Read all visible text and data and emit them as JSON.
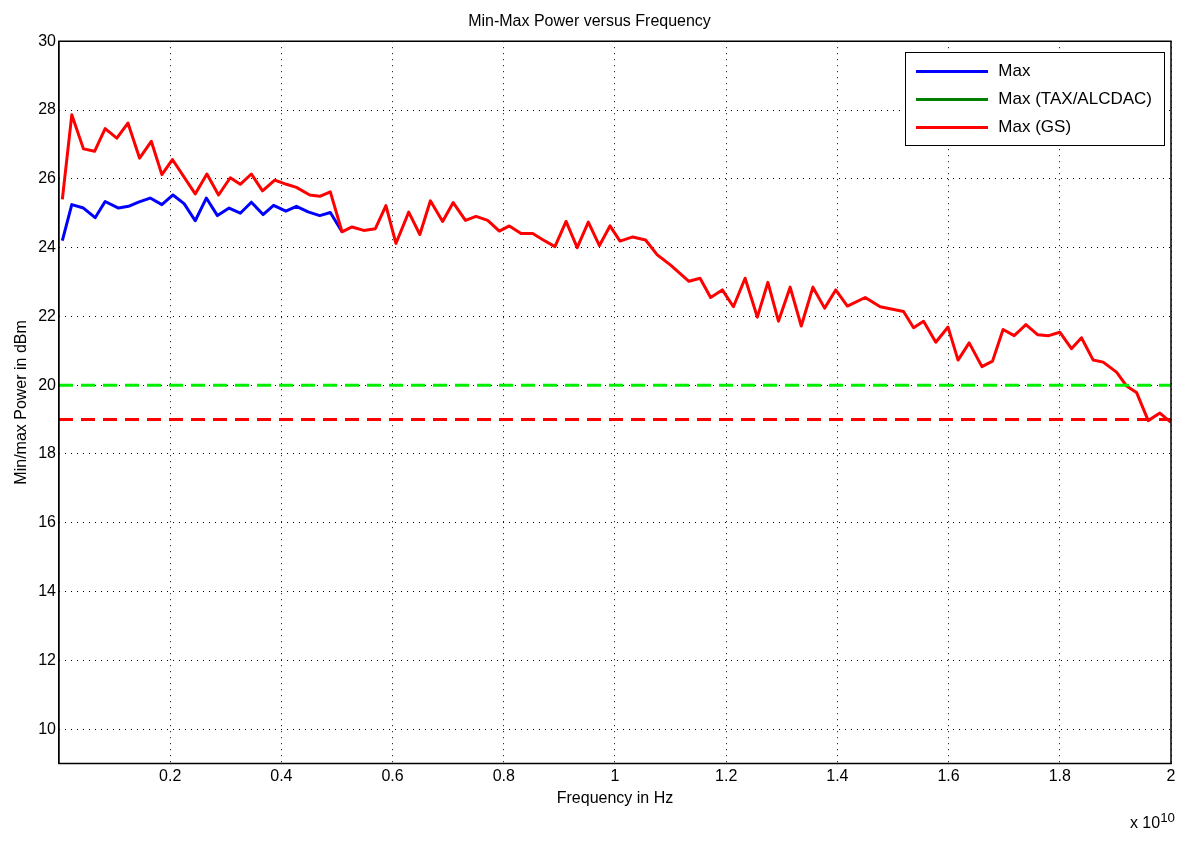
{
  "chart_data": {
    "type": "line",
    "title": "Min-Max Power versus Frequency",
    "xlabel": "Frequency in Hz",
    "ylabel": "Min/max Power in dBm",
    "annotations": [
      "x 10$^{10}$"
    ],
    "xlim": [
      0,
      2
    ],
    "xticks": [
      0.2,
      0.4,
      0.6,
      0.8,
      1,
      1.2,
      1.4,
      1.6,
      1.8,
      2
    ],
    "ylim": [
      9,
      30
    ],
    "yticks": [
      10,
      12,
      14,
      16,
      18,
      20,
      22,
      24,
      26,
      28,
      30
    ],
    "grid": true,
    "legend": "top right",
    "line_style": "solid",
    "ref_lines": [
      {
        "axis": "y",
        "value": 20,
        "color": "#00ee00",
        "line_style": "dashed"
      },
      {
        "axis": "y",
        "value": 19,
        "color": "#ff0000",
        "line_style": "dashed"
      }
    ],
    "series": [
      {
        "name": "Max",
        "color": "#0000ff",
        "x": [
          0.006,
          0.023,
          0.044,
          0.065,
          0.083,
          0.107,
          0.125,
          0.143,
          0.164,
          0.185,
          0.205,
          0.225,
          0.245,
          0.265,
          0.285,
          0.306,
          0.326,
          0.346,
          0.367,
          0.386,
          0.408,
          0.427,
          0.448,
          0.469,
          0.488,
          0.509
        ],
        "values": [
          24.2,
          25.25,
          25.15,
          24.87,
          25.34,
          25.15,
          25.2,
          25.32,
          25.44,
          25.25,
          25.53,
          25.28,
          24.78,
          25.44,
          24.93,
          25.15,
          25.0,
          25.32,
          24.96,
          25.23,
          25.06,
          25.2,
          25.04,
          24.93,
          25.02,
          24.46
        ]
      },
      {
        "name": "Max (TAX/ALCDAC)",
        "color": "#008000"
      },
      {
        "name": "Max (GS)",
        "color": "#ff0000",
        "x": [
          0.006,
          0.023,
          0.044,
          0.064,
          0.083,
          0.104,
          0.124,
          0.145,
          0.166,
          0.185,
          0.204,
          0.245,
          0.266,
          0.287,
          0.308,
          0.326,
          0.346,
          0.366,
          0.388,
          0.409,
          0.427,
          0.451,
          0.469,
          0.488,
          0.509,
          0.527,
          0.548,
          0.569,
          0.588,
          0.606,
          0.629,
          0.649,
          0.668,
          0.69,
          0.709,
          0.731,
          0.75,
          0.771,
          0.792,
          0.81,
          0.831,
          0.852,
          0.871,
          0.892,
          0.912,
          0.932,
          0.952,
          0.972,
          0.991,
          1.009,
          1.032,
          1.055,
          1.076,
          1.1,
          1.133,
          1.153,
          1.172,
          1.193,
          1.213,
          1.234,
          1.256,
          1.275,
          1.294,
          1.315,
          1.335,
          1.356,
          1.377,
          1.397,
          1.418,
          1.45,
          1.477,
          1.519,
          1.537,
          1.555,
          1.577,
          1.599,
          1.617,
          1.637,
          1.66,
          1.679,
          1.698,
          1.718,
          1.739,
          1.76,
          1.78,
          1.8,
          1.821,
          1.839,
          1.86,
          1.878,
          1.902,
          1.92,
          1.938,
          1.959,
          1.98,
          2.0
        ],
        "values": [
          25.4,
          27.86,
          26.87,
          26.8,
          27.46,
          27.18,
          27.62,
          26.6,
          27.09,
          26.12,
          26.56,
          25.56,
          26.14,
          25.53,
          26.03,
          25.84,
          26.14,
          25.65,
          25.96,
          25.84,
          25.75,
          25.53,
          25.49,
          25.62,
          24.46,
          24.6,
          24.5,
          24.55,
          25.22,
          24.12,
          25.03,
          24.38,
          25.36,
          24.76,
          25.31,
          24.79,
          24.91,
          24.79,
          24.48,
          24.63,
          24.41,
          24.41,
          24.22,
          24.03,
          24.76,
          24.0,
          24.74,
          24.06,
          24.63,
          24.19,
          24.31,
          24.22,
          23.79,
          23.49,
          23.02,
          23.11,
          22.55,
          22.77,
          22.28,
          23.11,
          21.98,
          22.99,
          21.86,
          22.85,
          21.72,
          22.85,
          22.24,
          22.77,
          22.3,
          22.55,
          22.28,
          22.14,
          21.67,
          21.86,
          21.25,
          21.69,
          20.73,
          21.23,
          20.54,
          20.7,
          21.62,
          21.44,
          21.76,
          21.47,
          21.44,
          21.54,
          21.06,
          21.38,
          20.73,
          20.67,
          20.38,
          19.98,
          19.79,
          18.97,
          19.19,
          18.92
        ]
      }
    ]
  }
}
